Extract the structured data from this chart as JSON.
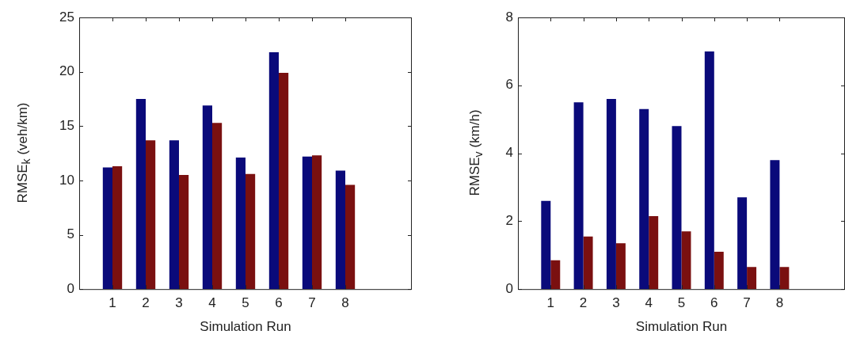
{
  "chart_data": [
    {
      "type": "bar",
      "xlabel": "Simulation Run",
      "ylabel": "RMSE$_{k}$ (veh/km)",
      "x": [
        1,
        2,
        3,
        4,
        5,
        6,
        7,
        8
      ],
      "xlim": [
        0,
        10
      ],
      "xticks": [
        1,
        2,
        3,
        4,
        5,
        6,
        7,
        8
      ],
      "ylim": [
        0,
        25
      ],
      "yticks": [
        0,
        5,
        10,
        15,
        20,
        25
      ],
      "series": [
        {
          "color": "#0a0a7a",
          "values": [
            11.2,
            17.5,
            13.7,
            16.9,
            12.1,
            21.8,
            12.2,
            10.9
          ]
        },
        {
          "color": "#7a1010",
          "values": [
            11.3,
            13.7,
            10.5,
            15.3,
            10.6,
            19.9,
            12.3,
            9.6
          ]
        }
      ]
    },
    {
      "type": "bar",
      "xlabel": "Simulation Run",
      "ylabel": "RMSE$_{v}$ (km/h)",
      "x": [
        1,
        2,
        3,
        4,
        5,
        6,
        7,
        8
      ],
      "xlim": [
        0,
        10
      ],
      "xticks": [
        1,
        2,
        3,
        4,
        5,
        6,
        7,
        8
      ],
      "ylim": [
        0,
        8
      ],
      "yticks": [
        0,
        2,
        4,
        6,
        8
      ],
      "series": [
        {
          "color": "#0a0a7a",
          "values": [
            2.6,
            5.5,
            5.6,
            5.3,
            4.8,
            7.0,
            2.7,
            3.8
          ]
        },
        {
          "color": "#7a1010",
          "values": [
            0.85,
            1.55,
            1.35,
            2.15,
            1.7,
            1.1,
            0.65,
            0.65
          ]
        }
      ]
    }
  ]
}
